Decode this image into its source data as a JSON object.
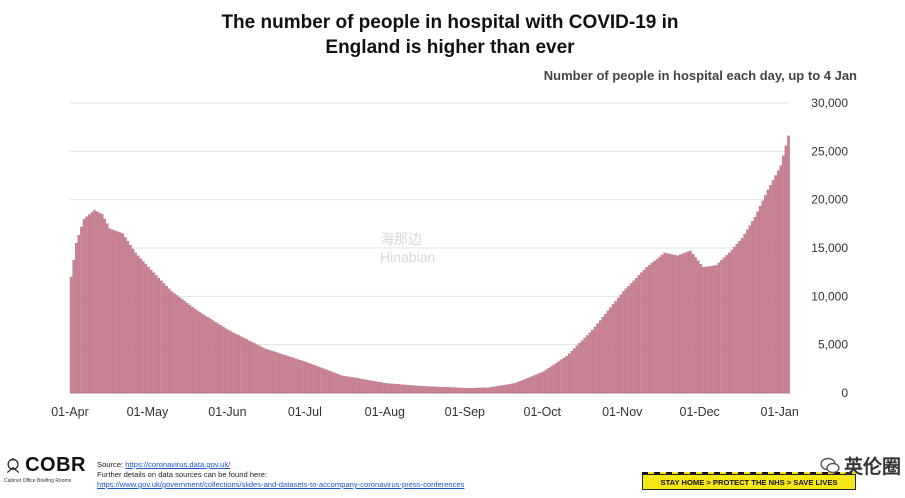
{
  "title_line1": "The number of people in hospital with COVID-19 in",
  "title_line2": "England is higher than ever",
  "subtitle": "Number of people in hospital each day, up to 4 Jan",
  "footer": {
    "logo_text": "COBR",
    "logo_sub": "Cabinet Office Briefing Rooms",
    "source_prefix": "Source: ",
    "source_link": "https://coronavirus.data.gov.uk/",
    "further_details": "Further details on data sources can be found here:",
    "details_link": "https://www.gov.uk/government/collections/slides-and-datasets-to-accompany-coronavirus-press-conferences",
    "banner": "STAY HOME > PROTECT THE NHS > SAVE LIVES",
    "wechat_label": "英伦圈",
    "watermark_line1": "海那边",
    "watermark_line2": "Hinabian"
  },
  "colors": {
    "bar": "#c98393",
    "bar_edge": "#a95a6d",
    "grid": "#e3e3e3",
    "axis_text": "#333333"
  },
  "chart_data": {
    "type": "bar",
    "title": "The number of people in hospital with COVID-19 in England is higher than ever",
    "subtitle": "Number of people in hospital each day, up to 4 Jan",
    "x_start": "2020-04-01",
    "x_end": "2021-01-04",
    "xtick_labels": [
      "01-Apr",
      "01-May",
      "01-Jun",
      "01-Jul",
      "01-Aug",
      "01-Sep",
      "01-Oct",
      "01-Nov",
      "01-Dec",
      "01-Jan"
    ],
    "ytick_labels": [
      "0",
      "5,000",
      "10,000",
      "15,000",
      "20,000",
      "25,000",
      "30,000"
    ],
    "yaxis_position": "right",
    "ylim": [
      0,
      30000
    ],
    "grid": "y",
    "keypoints": [
      [
        "2020-04-01",
        12000
      ],
      [
        "2020-04-03",
        15500
      ],
      [
        "2020-04-06",
        18000
      ],
      [
        "2020-04-10",
        18900
      ],
      [
        "2020-04-13",
        18500
      ],
      [
        "2020-04-16",
        17000
      ],
      [
        "2020-04-21",
        16500
      ],
      [
        "2020-04-26",
        14500
      ],
      [
        "2020-05-01",
        13000
      ],
      [
        "2020-05-10",
        10500
      ],
      [
        "2020-05-20",
        8500
      ],
      [
        "2020-06-01",
        6500
      ],
      [
        "2020-06-15",
        4600
      ],
      [
        "2020-07-01",
        3200
      ],
      [
        "2020-07-15",
        1800
      ],
      [
        "2020-08-01",
        1000
      ],
      [
        "2020-08-15",
        700
      ],
      [
        "2020-09-01",
        500
      ],
      [
        "2020-09-10",
        550
      ],
      [
        "2020-09-20",
        1000
      ],
      [
        "2020-10-01",
        2200
      ],
      [
        "2020-10-10",
        3800
      ],
      [
        "2020-10-20",
        6500
      ],
      [
        "2020-11-01",
        10500
      ],
      [
        "2020-11-10",
        13000
      ],
      [
        "2020-11-17",
        14500
      ],
      [
        "2020-11-22",
        14200
      ],
      [
        "2020-11-27",
        14700
      ],
      [
        "2020-12-02",
        13000
      ],
      [
        "2020-12-07",
        13200
      ],
      [
        "2020-12-12",
        14500
      ],
      [
        "2020-12-17",
        16000
      ],
      [
        "2020-12-22",
        18200
      ],
      [
        "2020-12-27",
        21000
      ],
      [
        "2021-01-01",
        23500
      ],
      [
        "2021-01-04",
        26600
      ]
    ]
  }
}
